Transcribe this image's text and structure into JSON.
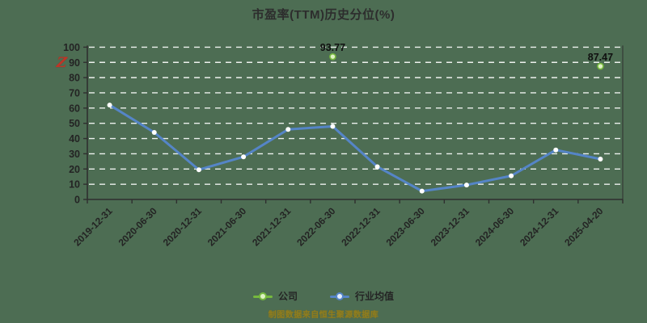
{
  "title": "市盈率(TTM)历史分位(%)",
  "brand_logo_glyph": "Z",
  "watermark_text": "制图数据来自恒生聚源数据库",
  "legend": [
    {
      "label": "公司"
    },
    {
      "label": "行业均值"
    }
  ],
  "colors": {
    "background": "#4d6d53",
    "title": "#2d2d2d",
    "axis": "#2f2f2f",
    "tick_label": "#242424",
    "grid": "rgba(255,255,255,0.9)",
    "company": "#76b93e",
    "company_fill": "#dff2c4",
    "industry": "#5585c7",
    "industry_marker_fill": "#ffffff",
    "value_label": "#101010",
    "watermark": "#8f7d1f",
    "logo": "#bf3527"
  },
  "chart_data": {
    "type": "line",
    "title": "市盈率(TTM)历史分位(%)",
    "categories": [
      "2019-12-31",
      "2020-06-30",
      "2020-12-31",
      "2021-06-30",
      "2021-12-31",
      "2022-06-30",
      "2022-12-31",
      "2023-06-30",
      "2023-12-31",
      "2024-06-30",
      "2024-12-31",
      "2025-04-20"
    ],
    "series": [
      {
        "name": "公司",
        "type": "points",
        "points": [
          {
            "category": "2022-06-30",
            "value": 93.77,
            "label": "93.77"
          },
          {
            "category": "2025-04-20",
            "value": 87.47,
            "label": "87.47"
          }
        ]
      },
      {
        "name": "行业均值",
        "type": "line",
        "values": [
          62,
          44,
          19.5,
          28,
          46,
          48,
          21.5,
          5.5,
          9.5,
          15.5,
          32.5,
          26.5
        ]
      }
    ],
    "ylim": [
      0,
      100
    ],
    "ytick_step": 10,
    "grid": "dashed",
    "legend_position": "bottom"
  }
}
